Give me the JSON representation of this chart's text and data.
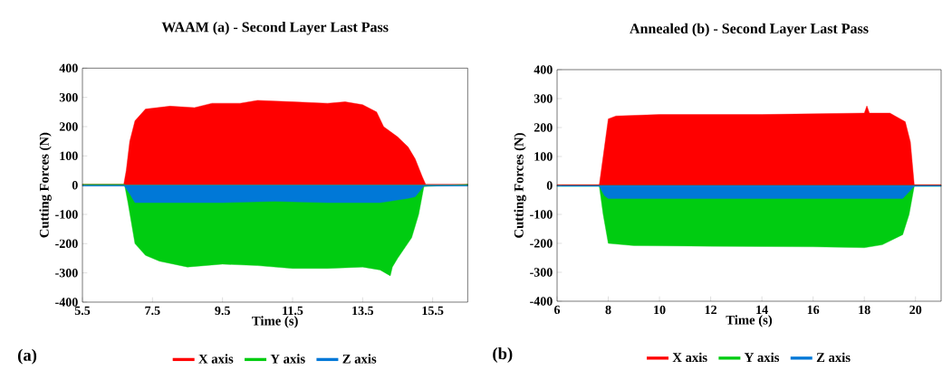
{
  "chart_data": [
    {
      "type": "area",
      "title": "WAAM (a) - Second Layer Last Pass",
      "xlabel": "Time (s)",
      "ylabel": "Cutting Forces (N)",
      "annotations": [
        "(a)"
      ],
      "xlim": [
        5.5,
        16.5
      ],
      "xticks": [
        5.5,
        7.5,
        9.5,
        11.5,
        13.5,
        15.5
      ],
      "ylim": [
        -400,
        400
      ],
      "yticks": [
        -400,
        -300,
        -200,
        -100,
        0,
        100,
        200,
        300,
        400
      ],
      "legend": "bottom",
      "series": [
        {
          "name": "X axis",
          "color": "#ff0000",
          "x": [
            5.5,
            6.68,
            6.75,
            6.85,
            7.0,
            7.3,
            8.0,
            8.7,
            9.2,
            10.0,
            10.5,
            11.5,
            12.5,
            13.0,
            13.5,
            13.9,
            14.1,
            14.5,
            14.8,
            15.0,
            15.2,
            15.3,
            16.5
          ],
          "values": [
            3,
            3,
            50,
            150,
            220,
            260,
            270,
            265,
            280,
            280,
            290,
            285,
            280,
            285,
            275,
            250,
            200,
            165,
            130,
            90,
            30,
            3,
            3
          ]
        },
        {
          "name": "Y axis",
          "color": "#00cc11",
          "x": [
            5.5,
            6.7,
            6.8,
            7.0,
            7.3,
            7.7,
            8.5,
            9.5,
            10.5,
            11.5,
            12.5,
            13.5,
            14.0,
            14.29,
            14.35,
            14.5,
            14.9,
            15.1,
            15.25,
            16.5
          ],
          "values": [
            3,
            3,
            -60,
            -200,
            -240,
            -260,
            -280,
            -270,
            -275,
            -285,
            -285,
            -280,
            -290,
            -310,
            -280,
            -250,
            -180,
            -100,
            -5,
            3
          ]
        },
        {
          "name": "Z axis",
          "color": "#0078d7",
          "x": [
            5.5,
            6.7,
            6.85,
            7.0,
            8.0,
            9.5,
            11.0,
            12.5,
            14.0,
            14.8,
            15.0,
            15.25,
            16.5
          ],
          "values": [
            -3,
            -3,
            -30,
            -60,
            -60,
            -60,
            -55,
            -60,
            -60,
            -45,
            -40,
            -3,
            -3
          ]
        }
      ]
    },
    {
      "type": "area",
      "title": "Annealed (b) - Second Layer Last Pass",
      "xlabel": "Time (s)",
      "ylabel": "Cutting Forces (N)",
      "annotations": [
        "(b)"
      ],
      "xlim": [
        6,
        21
      ],
      "xticks": [
        6,
        8,
        10,
        12,
        14,
        16,
        18,
        20
      ],
      "ylim": [
        -400,
        400
      ],
      "yticks": [
        -400,
        -300,
        -200,
        -100,
        0,
        100,
        200,
        300,
        400
      ],
      "legend": "bottom",
      "series": [
        {
          "name": "X axis",
          "color": "#ff0000",
          "x": [
            6,
            7.65,
            7.8,
            8.0,
            8.3,
            10.0,
            14.0,
            18.0,
            18.1,
            18.2,
            19.0,
            19.6,
            19.8,
            19.95,
            21
          ],
          "values": [
            3,
            3,
            100,
            230,
            240,
            245,
            245,
            250,
            275,
            250,
            250,
            220,
            150,
            3,
            3
          ]
        },
        {
          "name": "Y axis",
          "color": "#00cc11",
          "x": [
            6,
            7.65,
            7.8,
            8.0,
            9.0,
            12.0,
            16.0,
            18.0,
            18.7,
            19.5,
            19.75,
            19.95,
            21
          ],
          "values": [
            -3,
            -3,
            -100,
            -200,
            -208,
            -210,
            -212,
            -215,
            -205,
            -170,
            -100,
            -3,
            -3
          ]
        },
        {
          "name": "Z axis",
          "color": "#0078d7",
          "x": [
            6,
            7.65,
            7.85,
            8.0,
            12.0,
            16.0,
            19.5,
            19.95,
            21
          ],
          "values": [
            -3,
            -3,
            -35,
            -45,
            -45,
            -45,
            -45,
            -3,
            -3
          ]
        }
      ]
    }
  ]
}
